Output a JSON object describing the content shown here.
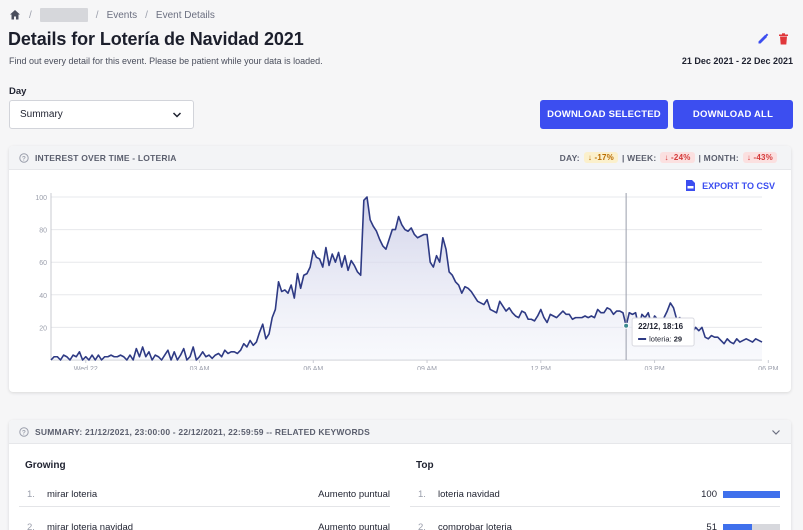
{
  "breadcrumb": {
    "items": [
      "Events",
      "Event Details"
    ]
  },
  "page": {
    "title": "Details for Lotería de Navidad 2021",
    "subtitle": "Find out every detail for this event. Please be patient while your data is loaded.",
    "date_range": "21 Dec 2021 - 22 Dec 2021"
  },
  "day": {
    "label": "Day",
    "selected": "Summary"
  },
  "buttons": {
    "download_selected": "DOWNLOAD SELECTED",
    "download_all": "DOWNLOAD ALL"
  },
  "chart_card": {
    "title": "INTEREST OVER TIME - LOTERIA",
    "day_label": "DAY:",
    "day_change": "↓ -17%",
    "week_label": "| WEEK:",
    "week_change": "↓ -24%",
    "month_label": "| MONTH:",
    "month_change": "↓ -43%",
    "export_label": "EXPORT TO CSV",
    "tooltip_time": "22/12, 18:16",
    "tooltip_series": "loteria:",
    "tooltip_value": "29"
  },
  "colors": {
    "accent": "#3c4ef0",
    "line": "#2e3a84",
    "warn": "#b86b00",
    "danger": "#d43a3a"
  },
  "chart_data": {
    "type": "area",
    "series": [
      {
        "name": "loteria",
        "values": [
          0,
          2,
          2,
          0,
          3,
          2,
          0,
          3,
          2,
          5,
          0,
          2,
          0,
          3,
          0,
          3,
          0,
          2,
          2,
          3,
          2,
          2,
          3,
          2,
          0,
          3,
          0,
          7,
          2,
          8,
          2,
          5,
          0,
          3,
          2,
          0,
          3,
          6,
          0,
          5,
          0,
          3,
          7,
          0,
          2,
          8,
          0,
          2,
          5,
          2,
          3,
          1,
          3,
          4,
          2,
          6,
          4,
          5,
          5,
          4,
          6,
          10,
          8,
          12,
          9,
          11,
          17,
          22,
          13,
          16,
          26,
          31,
          48,
          42,
          43,
          41,
          46,
          38,
          53,
          44,
          52,
          53,
          57,
          67,
          63,
          62,
          57,
          69,
          58,
          65,
          60,
          66,
          57,
          64,
          55,
          61,
          58,
          54,
          52,
          98,
          100,
          86,
          82,
          79,
          74,
          70,
          68,
          74,
          80,
          80,
          88,
          83,
          80,
          79,
          81,
          77,
          75,
          76,
          77,
          77,
          60,
          57,
          64,
          60,
          75,
          68,
          54,
          52,
          48,
          46,
          41,
          45,
          44,
          42,
          39,
          36,
          35,
          34,
          37,
          31,
          30,
          29,
          36,
          33,
          30,
          32,
          29,
          27,
          26,
          30,
          29,
          25,
          25,
          24,
          27,
          31,
          26,
          23,
          28,
          27,
          26,
          28,
          30,
          28,
          28,
          25,
          26,
          26,
          26,
          27,
          26,
          27,
          26,
          31,
          29,
          29,
          32,
          31,
          28,
          30,
          30,
          29,
          21,
          29,
          28,
          29,
          20,
          28,
          26,
          29,
          22,
          27,
          25,
          24,
          26,
          30,
          35,
          32,
          25,
          26,
          22,
          19,
          20,
          17,
          20,
          18,
          20,
          14,
          13,
          15,
          14,
          14,
          12,
          10,
          13,
          11,
          10,
          13,
          11,
          12,
          13,
          12,
          11,
          13,
          12,
          11
        ]
      }
    ],
    "x_ticks": [
      "Wed 22",
      "03 AM",
      "06 AM",
      "09 AM",
      "12 PM",
      "03 PM",
      "06 PM",
      "09 PM"
    ],
    "y_ticks": [
      20,
      40,
      60,
      80,
      100
    ],
    "ylim": [
      0,
      100
    ],
    "grid": true,
    "legend": "none"
  },
  "summary": {
    "title": "SUMMARY: 21/12/2021, 23:00:00 - 22/12/2021, 22:59:59 -- RELATED KEYWORDS",
    "growing_title": "Growing",
    "top_title": "Top",
    "growing": [
      {
        "rank": "1.",
        "term": "mirar loteria",
        "value": "Aumento puntual"
      },
      {
        "rank": "2.",
        "term": "mirar loteria navidad",
        "value": "Aumento puntual"
      }
    ],
    "top": [
      {
        "rank": "1.",
        "term": "loteria navidad",
        "value": "100",
        "fraction": 1.0
      },
      {
        "rank": "2.",
        "term": "comprobar loteria",
        "value": "51",
        "fraction": 0.51
      }
    ]
  }
}
